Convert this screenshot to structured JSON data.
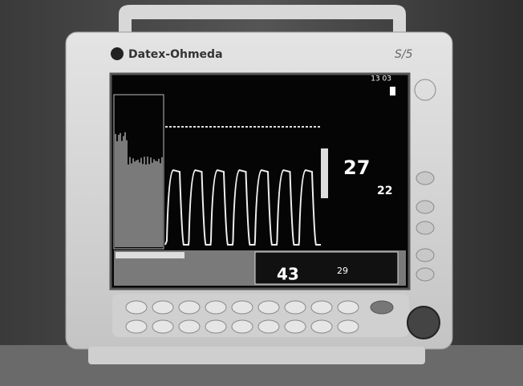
{
  "monitor": {
    "brand": "Datex-Ohmeda",
    "model": "S/5",
    "clock": "13 03",
    "readouts": {
      "resp_rate": "27",
      "fio2": "22",
      "etco2": "43",
      "fico2": "29"
    }
  }
}
